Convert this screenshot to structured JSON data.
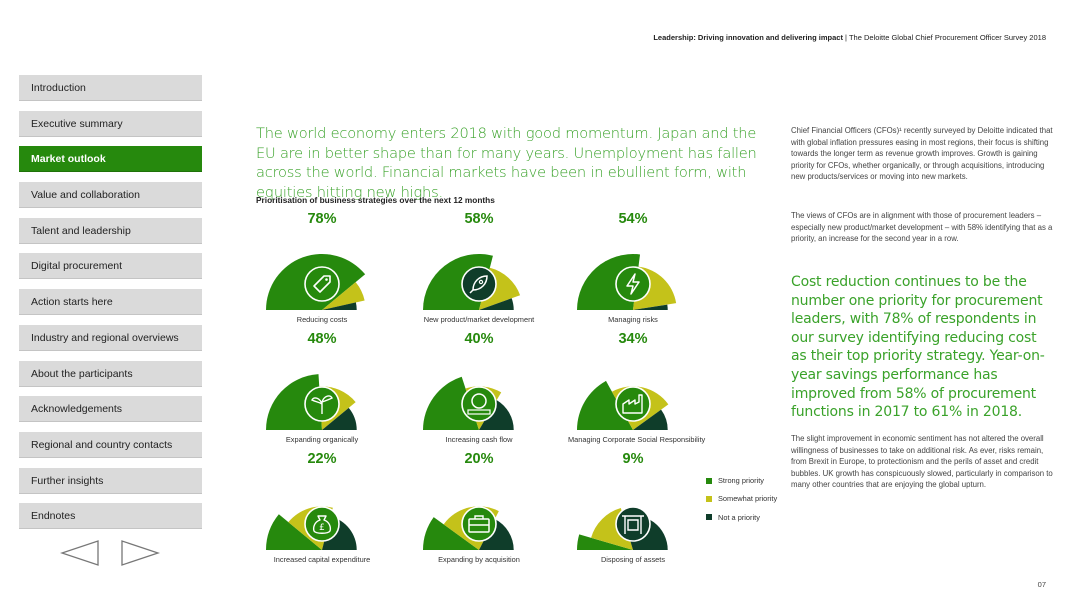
{
  "header": {
    "title_bold": "Leadership: Driving innovation and delivering impact",
    "separator": " | ",
    "subtitle": "The Deloitte Global Chief Procurement Officer Survey 2018"
  },
  "sidebar": {
    "items": [
      {
        "label": "Introduction",
        "active": false
      },
      {
        "label": "Executive summary",
        "active": false
      },
      {
        "label": "Market outlook",
        "active": true
      },
      {
        "label": "Value and collaboration",
        "active": false
      },
      {
        "label": "Talent and leadership",
        "active": false
      },
      {
        "label": "Digital procurement",
        "active": false
      },
      {
        "label": "Action starts here",
        "active": false
      },
      {
        "label": "Industry and regional overviews",
        "active": false
      },
      {
        "label": "About the participants",
        "active": false
      },
      {
        "label": "Acknowledgements",
        "active": false
      },
      {
        "label": "Regional and country contacts",
        "active": false
      },
      {
        "label": "Further insights",
        "active": false
      },
      {
        "label": "Endnotes",
        "active": false
      }
    ]
  },
  "main": {
    "lead": "The world economy enters 2018 with good momentum. Japan and the EU are in better shape than for many years. Unemployment has fallen across the world. Financial markets have been in ebullient form, with equities hitting new highs.",
    "chart_title": "Prioritisation of business strategies over the next 12 months"
  },
  "colors": {
    "strong": "#26890d",
    "somewhat": "#c4c21a",
    "not": "#0f3d2a",
    "accent_text": "#3aa22a"
  },
  "chart_data": {
    "type": "gauge",
    "title": "Prioritisation of business strategies over the next 12 months",
    "series_names": [
      "Strong priority",
      "Somewhat priority",
      "Not a priority"
    ],
    "items": [
      {
        "label": "Reducing costs",
        "pct_label": "78%",
        "strong": 78,
        "somewhat": 15,
        "not": 7,
        "icon": "tag-icon"
      },
      {
        "label": "New product/market development",
        "pct_label": "58%",
        "strong": 58,
        "somewhat": 31,
        "not": 11,
        "icon": "rocket-icon"
      },
      {
        "label": "Managing risks",
        "pct_label": "54%",
        "strong": 54,
        "somewhat": 41,
        "not": 5,
        "icon": "lightning-icon"
      },
      {
        "label": "Expanding organically",
        "pct_label": "48%",
        "strong": 48,
        "somewhat": 30,
        "not": 22,
        "icon": "sprout-icon"
      },
      {
        "label": "Increasing cash flow",
        "pct_label": "40%",
        "strong": 40,
        "somewhat": 27,
        "not": 33,
        "icon": "coins-icon"
      },
      {
        "label": "Managing Corporate Social Responsibility",
        "pct_label": "34%",
        "strong": 34,
        "somewhat": 46,
        "not": 20,
        "icon": "factory-icon"
      },
      {
        "label": "Increased capital expenditure",
        "pct_label": "22%",
        "strong": 22,
        "somewhat": 36,
        "not": 42,
        "icon": "moneybag-icon"
      },
      {
        "label": "Expanding by acquisition",
        "pct_label": "20%",
        "strong": 20,
        "somewhat": 45,
        "not": 35,
        "icon": "briefcase-icon"
      },
      {
        "label": "Disposing of assets",
        "pct_label": "9%",
        "strong": 9,
        "somewhat": 32,
        "not": 59,
        "icon": "building-icon"
      }
    ]
  },
  "legend": {
    "strong": "Strong priority",
    "somewhat": "Somewhat priority",
    "not": "Not a priority"
  },
  "right": {
    "para1": "Chief Financial Officers (CFOs)¹ recently surveyed by Deloitte indicated that with global inflation pressures easing in most regions, their focus is shifting towards the longer term as revenue growth improves. Growth is gaining priority for CFOs, whether organically, or through acquisitions, introducing new products/services or moving into new markets.",
    "para2": "The views of CFOs are in alignment with those of procurement leaders – especially new product/market development – with 58% identifying that as a priority, an increase for the second year in a row.",
    "pull": "Cost reduction continues to be the number one priority for procurement leaders, with 78% of respondents in our survey identifying reducing cost as their top priority strategy. Year-on-year savings performance has improved from 58% of procurement functions in 2017 to 61% in 2018.",
    "para3": "The slight improvement in economic sentiment has not altered the overall willingness of businesses to take on additional risk. As ever, risks remain, from Brexit in Europe, to protectionism and the perils of asset and credit bubbles. UK growth has conspicuously slowed, particularly in comparison to many other countries that are enjoying the global upturn."
  },
  "page_number": "07"
}
